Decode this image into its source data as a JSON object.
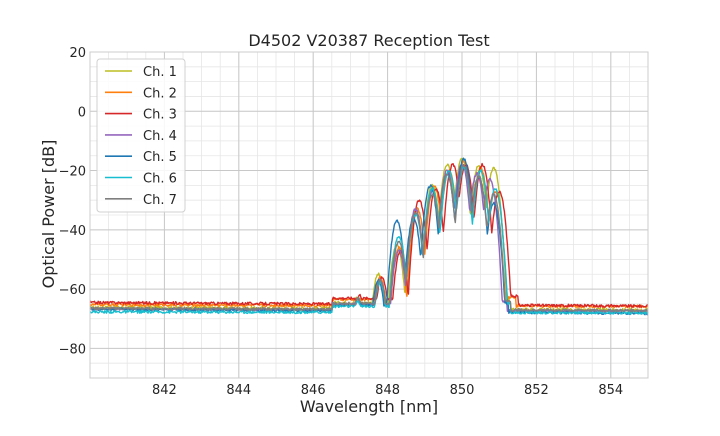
{
  "chart_data": {
    "type": "line",
    "title": "D4502 V20387 Reception Test",
    "xlabel": "Wavelength [nm]",
    "ylabel": "Optical Power [dB]",
    "xlim": [
      840.0,
      855.0
    ],
    "ylim": [
      -90,
      20
    ],
    "xticks": [
      842,
      844,
      846,
      848,
      850,
      852,
      854
    ],
    "xtick_labels": [
      "842",
      "844",
      "846",
      "848",
      "850",
      "852",
      "854"
    ],
    "yticks": [
      20,
      0,
      -20,
      -40,
      -60,
      -80
    ],
    "ytick_labels": [
      "20",
      "0",
      "−20",
      "−40",
      "−60",
      "−80"
    ],
    "x_minor_step": 0.5,
    "y_minor_step": 5,
    "grid": true,
    "legend_position": "top-left",
    "series": [
      {
        "name": "Ch. 1",
        "color": "#bcbd22",
        "baseline": -66.5,
        "slope": -0.06,
        "peak_x": 849.4,
        "peaks": [
          [
            847.15,
            -63
          ],
          [
            847.75,
            -55
          ],
          [
            848.25,
            -45
          ],
          [
            848.75,
            -34
          ],
          [
            849.2,
            -25
          ],
          [
            849.6,
            -18
          ],
          [
            850.0,
            -16
          ],
          [
            850.45,
            -18
          ],
          [
            850.85,
            -19
          ]
        ],
        "edge": 851.0
      },
      {
        "name": "Ch. 2",
        "color": "#ff7f0e",
        "baseline": -65.5,
        "slope": -0.04,
        "peaks": [
          [
            847.2,
            -63
          ],
          [
            847.8,
            -56
          ],
          [
            848.3,
            -46
          ],
          [
            848.8,
            -33
          ],
          [
            849.25,
            -25
          ],
          [
            849.65,
            -20
          ],
          [
            850.05,
            -17
          ],
          [
            850.5,
            -19
          ],
          [
            850.9,
            -27
          ]
        ],
        "edge": 851.15
      },
      {
        "name": "Ch. 3",
        "color": "#d62728",
        "baseline": -65.0,
        "slope": -0.08,
        "peaks": [
          [
            847.25,
            -62
          ],
          [
            847.85,
            -56
          ],
          [
            848.35,
            -47
          ],
          [
            848.85,
            -30
          ],
          [
            849.3,
            -26
          ],
          [
            849.75,
            -18
          ],
          [
            850.1,
            -18
          ],
          [
            850.55,
            -18
          ],
          [
            851.0,
            -27
          ]
        ],
        "edge": 851.2
      },
      {
        "name": "Ch. 4",
        "color": "#9467bd",
        "baseline": -67.0,
        "slope": -0.05,
        "peaks": [
          [
            847.2,
            -64
          ],
          [
            847.8,
            -57
          ],
          [
            848.3,
            -47
          ],
          [
            848.75,
            -33
          ],
          [
            849.2,
            -27
          ],
          [
            849.6,
            -20
          ],
          [
            850.0,
            -18
          ],
          [
            850.4,
            -21
          ],
          [
            850.75,
            -23
          ]
        ],
        "edge": 850.9
      },
      {
        "name": "Ch. 5",
        "color": "#1f77b4",
        "baseline": -67.3,
        "slope": -0.1,
        "peaks": [
          [
            847.2,
            -63
          ],
          [
            847.75,
            -57
          ],
          [
            848.25,
            -37
          ],
          [
            848.7,
            -36
          ],
          [
            849.15,
            -25
          ],
          [
            849.6,
            -21
          ],
          [
            850.05,
            -16
          ],
          [
            850.45,
            -22
          ],
          [
            850.85,
            -31
          ]
        ],
        "edge": 850.95
      },
      {
        "name": "Ch. 6",
        "color": "#17becf",
        "baseline": -67.8,
        "slope": -0.02,
        "peaks": [
          [
            847.2,
            -64
          ],
          [
            847.8,
            -58
          ],
          [
            848.3,
            -42
          ],
          [
            848.75,
            -35
          ],
          [
            849.2,
            -26
          ],
          [
            849.65,
            -20
          ],
          [
            850.05,
            -19
          ],
          [
            850.5,
            -20
          ],
          [
            850.9,
            -26
          ]
        ],
        "edge": 851.0
      },
      {
        "name": "Ch. 7",
        "color": "#7f7f7f",
        "baseline": -66.8,
        "slope": -0.05,
        "peaks": [
          [
            847.2,
            -63
          ],
          [
            847.8,
            -57
          ],
          [
            848.3,
            -44
          ],
          [
            848.75,
            -34
          ],
          [
            849.2,
            -28
          ],
          [
            849.6,
            -21
          ],
          [
            850.05,
            -18
          ],
          [
            850.45,
            -22
          ],
          [
            850.85,
            -28
          ]
        ],
        "edge": 851.0
      }
    ]
  }
}
